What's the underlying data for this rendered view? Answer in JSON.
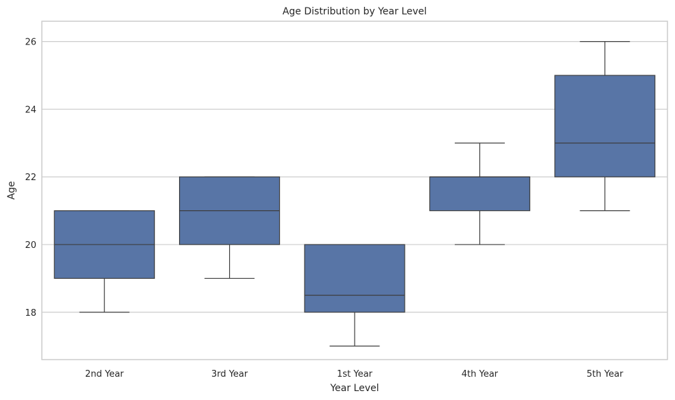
{
  "chart_data": {
    "type": "box",
    "title": "Age Distribution by Year Level",
    "xlabel": "Year Level",
    "ylabel": "Age",
    "categories": [
      "2nd Year",
      "3rd Year",
      "1st Year",
      "4th Year",
      "5th Year"
    ],
    "boxes": [
      {
        "category": "2nd Year",
        "whisker_low": 18,
        "q1": 19,
        "median": 20,
        "q3": 21,
        "whisker_high": 21
      },
      {
        "category": "3rd Year",
        "whisker_low": 19,
        "q1": 20,
        "median": 21,
        "q3": 22,
        "whisker_high": 22
      },
      {
        "category": "1st Year",
        "whisker_low": 17,
        "q1": 18,
        "median": 18.5,
        "q3": 20,
        "whisker_high": 20
      },
      {
        "category": "4th Year",
        "whisker_low": 20,
        "q1": 21,
        "median": 22,
        "q3": 22,
        "whisker_high": 23
      },
      {
        "category": "5th Year",
        "whisker_low": 21,
        "q1": 22,
        "median": 23,
        "q3": 25,
        "whisker_high": 26
      }
    ],
    "yticks": [
      "18",
      "20",
      "22",
      "24",
      "26"
    ],
    "ylim": [
      16.6,
      26.6
    ],
    "grid": "horizontal",
    "legend": "none",
    "colors": {
      "box_fill": "#5875a6",
      "box_edge": "#3d3d3d",
      "grid": "#cccccc",
      "frame": "#cccccc"
    }
  }
}
